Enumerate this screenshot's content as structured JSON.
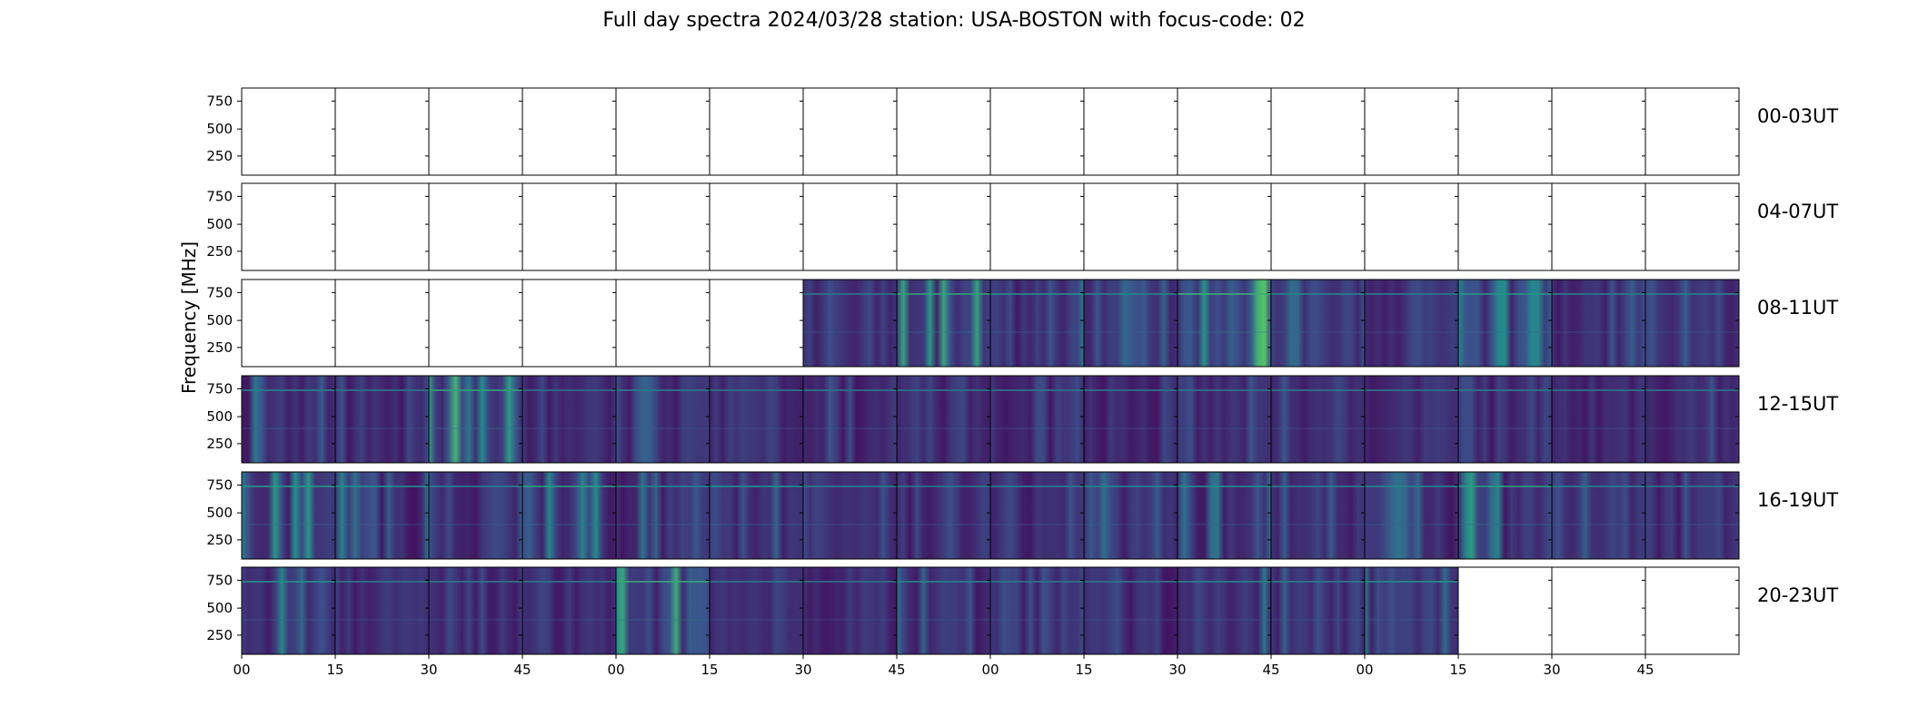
{
  "chart_data": {
    "type": "heatmap",
    "title": "Full day spectra 2024/03/28 station: USA-BOSTON with focus-code: 02",
    "ylabel": "Frequency [MHz]",
    "xlabel": "",
    "y_ticks": [
      "750",
      "500",
      "250"
    ],
    "x_ticks": [
      "00",
      "15",
      "30",
      "45",
      "00",
      "15",
      "30",
      "45",
      "00",
      "15",
      "30",
      "45",
      "00",
      "15",
      "30",
      "45"
    ],
    "colormap": "viridis",
    "rows": [
      {
        "label": "00-03UT",
        "data_present": [
          0,
          0,
          0,
          0,
          0,
          0,
          0,
          0,
          0,
          0,
          0,
          0,
          0,
          0,
          0,
          0
        ]
      },
      {
        "label": "04-07UT",
        "data_present": [
          0,
          0,
          0,
          0,
          0,
          0,
          0,
          0,
          0,
          0,
          0,
          0,
          0,
          0,
          0,
          0
        ]
      },
      {
        "label": "08-11UT",
        "data_present": [
          0,
          0,
          0,
          0,
          0,
          0,
          1,
          1,
          1,
          1,
          1,
          1,
          1,
          1,
          1,
          1
        ]
      },
      {
        "label": "12-15UT",
        "data_present": [
          1,
          1,
          1,
          1,
          1,
          1,
          1,
          1,
          1,
          1,
          1,
          1,
          1,
          1,
          1,
          1
        ]
      },
      {
        "label": "16-19UT",
        "data_present": [
          1,
          1,
          1,
          1,
          1,
          1,
          1,
          1,
          1,
          1,
          1,
          1,
          1,
          1,
          1,
          1
        ]
      },
      {
        "label": "20-23UT",
        "data_present": [
          1,
          1,
          1,
          1,
          1,
          1,
          1,
          1,
          1,
          1,
          1,
          1,
          1,
          0,
          0,
          0
        ]
      }
    ],
    "panel_intensity": [
      [
        0,
        0,
        0,
        0,
        0,
        0,
        0,
        0,
        0,
        0,
        0,
        0,
        0,
        0,
        0,
        0
      ],
      [
        0,
        0,
        0,
        0,
        0,
        0,
        0,
        0,
        0,
        0,
        0,
        0,
        0,
        0,
        0,
        0
      ],
      [
        0,
        0,
        0,
        0,
        0,
        0,
        0.1,
        0.45,
        0.3,
        0.2,
        0.55,
        0.2,
        0.15,
        0.35,
        0.15,
        0.2
      ],
      [
        0.2,
        0.1,
        0.45,
        0.05,
        0.15,
        0.1,
        0.1,
        0.1,
        0.1,
        0.1,
        0.1,
        0.1,
        0.1,
        0.15,
        0.1,
        0.1
      ],
      [
        0.35,
        0.3,
        0.15,
        0.4,
        0.2,
        0.3,
        0.15,
        0.1,
        0.15,
        0.2,
        0.25,
        0.15,
        0.2,
        0.4,
        0.15,
        0.1
      ],
      [
        0.3,
        0.1,
        0.1,
        0.1,
        0.5,
        0.1,
        0.05,
        0.2,
        0.1,
        0.1,
        0.2,
        0.15,
        0.3,
        0,
        0,
        0
      ]
    ]
  }
}
